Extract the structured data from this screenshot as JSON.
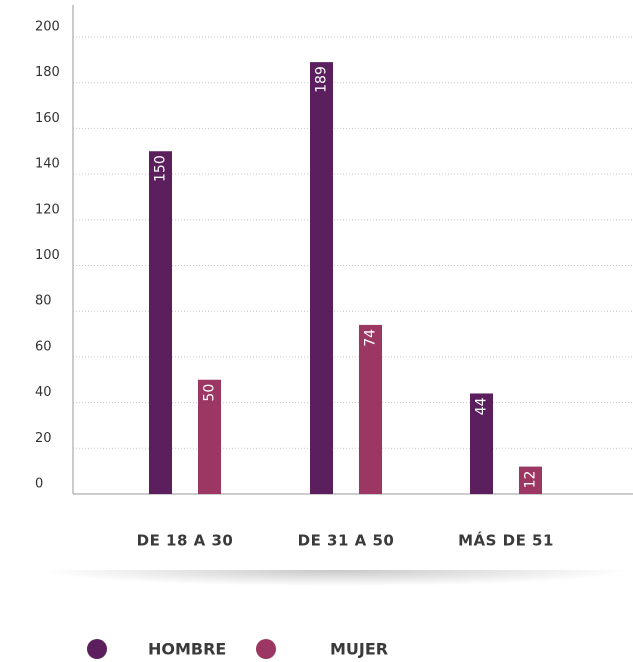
{
  "chart_data": {
    "type": "bar",
    "categories": [
      "DE 18 A 30",
      "DE 31 A 50",
      "MÁS DE 51"
    ],
    "series": [
      {
        "name": "HOMBRE",
        "color": "#5b1f5e",
        "values": [
          150,
          189,
          44
        ]
      },
      {
        "name": "MUJER",
        "color": "#9b3762",
        "values": [
          50,
          74,
          12
        ]
      }
    ],
    "ylim": [
      0,
      214
    ],
    "yticks": [
      0,
      20,
      40,
      60,
      80,
      100,
      120,
      140,
      160,
      180,
      200
    ],
    "grid": true
  }
}
